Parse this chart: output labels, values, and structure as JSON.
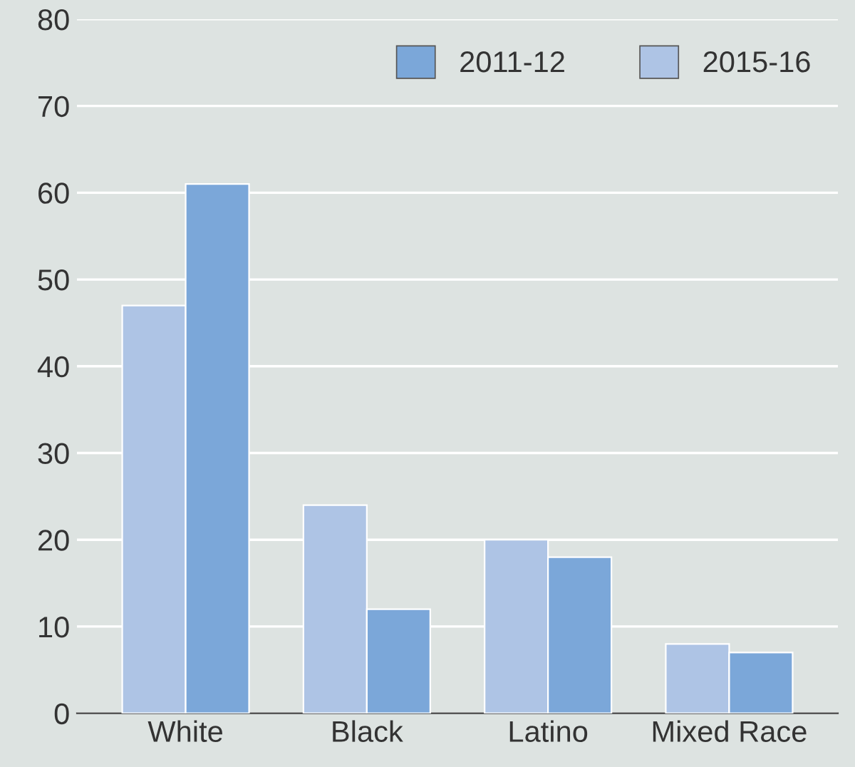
{
  "chart_data": {
    "type": "bar",
    "categories": [
      "White",
      "Black",
      "Latino",
      "Mixed Race"
    ],
    "series": [
      {
        "name": "2015-16",
        "color": "#aec4e5",
        "values": [
          47,
          24,
          20,
          8
        ]
      },
      {
        "name": "2011-12",
        "color": "#7ba7d9",
        "values": [
          61,
          12,
          18,
          7
        ]
      }
    ],
    "ylim": [
      0,
      80
    ],
    "yticks": [
      0,
      10,
      20,
      30,
      40,
      50,
      60,
      70,
      80
    ],
    "grid": "y",
    "legend": "top right"
  }
}
